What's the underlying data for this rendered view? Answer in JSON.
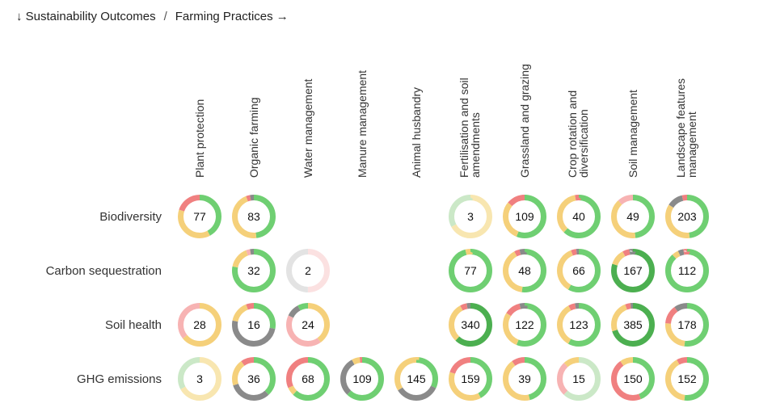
{
  "breadcrumb": {
    "outcomes": "↓ Sustainability Outcomes",
    "separator": "/",
    "practices": "Farming Practices →"
  },
  "colors": {
    "positive": "#6fcf72",
    "positive_strong": "#4caf50",
    "mixed": "#f5d07a",
    "negative": "#f08080",
    "negative_light": "#f7b3b3",
    "neutral": "#8a8a8a",
    "neutral_light": "#d0d0d0",
    "positive_light": "#cbe8c7",
    "mixed_light": "#f8e6b0",
    "negative_pale": "#fbe1e1",
    "gray_pale": "#e3e3e3"
  },
  "chart_data": {
    "type": "heatmap",
    "rows": [
      "Biodiversity",
      "Carbon sequestration",
      "Soil health",
      "GHG emissions"
    ],
    "columns": [
      [
        "Plant protection"
      ],
      [
        "Organic farming"
      ],
      [
        "Water management"
      ],
      [
        "Manure management"
      ],
      [
        "Animal husbandry"
      ],
      [
        "Fertilisation and soil",
        "amendments"
      ],
      [
        "Grassland and grazing"
      ],
      [
        "Crop rotation and",
        "diversification"
      ],
      [
        "Soil management"
      ],
      [
        "Landscape features",
        "management"
      ]
    ],
    "cells": [
      [
        {
          "value": 77,
          "segments": [
            [
              "positive",
              0.42
            ],
            [
              "mixed",
              0.38
            ],
            [
              "negative",
              0.2
            ]
          ]
        },
        {
          "value": 83,
          "segments": [
            [
              "positive",
              0.48
            ],
            [
              "mixed",
              0.46
            ],
            [
              "negative",
              0.03
            ],
            [
              "neutral",
              0.03
            ]
          ]
        },
        null,
        null,
        null,
        {
          "value": 3,
          "segments": [
            [
              "mixed_light",
              0.67
            ],
            [
              "positive_light",
              0.33
            ]
          ]
        },
        {
          "value": 109,
          "segments": [
            [
              "positive",
              0.56
            ],
            [
              "mixed",
              0.3
            ],
            [
              "negative",
              0.14
            ]
          ]
        },
        {
          "value": 40,
          "segments": [
            [
              "positive",
              0.62
            ],
            [
              "mixed",
              0.35
            ],
            [
              "negative",
              0.03
            ]
          ]
        },
        {
          "value": 49,
          "segments": [
            [
              "positive",
              0.48
            ],
            [
              "mixed",
              0.4
            ],
            [
              "negative_light",
              0.12
            ]
          ]
        },
        {
          "value": 203,
          "segments": [
            [
              "positive",
              0.48
            ],
            [
              "mixed",
              0.36
            ],
            [
              "neutral",
              0.12
            ],
            [
              "negative",
              0.04
            ]
          ]
        }
      ],
      [
        null,
        {
          "value": 32,
          "segments": [
            [
              "positive",
              0.78
            ],
            [
              "mixed",
              0.16
            ],
            [
              "negative_light",
              0.03
            ],
            [
              "neutral",
              0.03
            ]
          ]
        },
        {
          "value": 2,
          "segments": [
            [
              "negative_pale",
              0.5
            ],
            [
              "gray_pale",
              0.5
            ]
          ]
        },
        null,
        null,
        {
          "value": 77,
          "segments": [
            [
              "positive",
              0.96
            ],
            [
              "mixed",
              0.04
            ]
          ]
        },
        {
          "value": 48,
          "segments": [
            [
              "positive",
              0.52
            ],
            [
              "mixed",
              0.4
            ],
            [
              "negative",
              0.04
            ],
            [
              "neutral",
              0.04
            ]
          ]
        },
        {
          "value": 66,
          "segments": [
            [
              "positive",
              0.58
            ],
            [
              "mixed",
              0.36
            ],
            [
              "negative",
              0.04
            ],
            [
              "neutral",
              0.02
            ]
          ]
        },
        {
          "value": 167,
          "segments": [
            [
              "positive_strong",
              0.8
            ],
            [
              "mixed",
              0.12
            ],
            [
              "negative",
              0.05
            ],
            [
              "neutral",
              0.03
            ]
          ]
        },
        {
          "value": 112,
          "segments": [
            [
              "positive",
              0.88
            ],
            [
              "mixed",
              0.05
            ],
            [
              "neutral",
              0.04
            ],
            [
              "negative",
              0.03
            ]
          ]
        }
      ],
      [
        {
          "value": 28,
          "segments": [
            [
              "mixed",
              0.64
            ],
            [
              "negative_light",
              0.36
            ]
          ]
        },
        {
          "value": 16,
          "segments": [
            [
              "positive",
              0.28
            ],
            [
              "neutral",
              0.5
            ],
            [
              "mixed",
              0.16
            ],
            [
              "negative",
              0.06
            ]
          ]
        },
        {
          "value": 24,
          "segments": [
            [
              "mixed",
              0.4
            ],
            [
              "negative_light",
              0.42
            ],
            [
              "neutral",
              0.1
            ],
            [
              "positive",
              0.08
            ]
          ]
        },
        null,
        null,
        {
          "value": 340,
          "segments": [
            [
              "positive_strong",
              0.62
            ],
            [
              "mixed",
              0.3
            ],
            [
              "negative",
              0.05
            ],
            [
              "neutral",
              0.03
            ]
          ]
        },
        {
          "value": 122,
          "segments": [
            [
              "positive",
              0.56
            ],
            [
              "mixed",
              0.28
            ],
            [
              "negative",
              0.12
            ],
            [
              "neutral",
              0.04
            ]
          ]
        },
        {
          "value": 123,
          "segments": [
            [
              "positive",
              0.58
            ],
            [
              "mixed",
              0.34
            ],
            [
              "negative",
              0.05
            ],
            [
              "neutral",
              0.03
            ]
          ]
        },
        {
          "value": 385,
          "segments": [
            [
              "positive_strong",
              0.7
            ],
            [
              "mixed",
              0.24
            ],
            [
              "negative",
              0.04
            ],
            [
              "neutral",
              0.02
            ]
          ]
        },
        {
          "value": 178,
          "segments": [
            [
              "positive",
              0.52
            ],
            [
              "mixed",
              0.24
            ],
            [
              "negative",
              0.14
            ],
            [
              "neutral",
              0.1
            ]
          ]
        }
      ],
      [
        {
          "value": 3,
          "segments": [
            [
              "mixed_light",
              0.67
            ],
            [
              "positive_light",
              0.33
            ]
          ]
        },
        {
          "value": 36,
          "segments": [
            [
              "positive",
              0.38
            ],
            [
              "neutral",
              0.32
            ],
            [
              "mixed",
              0.2
            ],
            [
              "negative",
              0.1
            ]
          ]
        },
        {
          "value": 68,
          "segments": [
            [
              "positive",
              0.62
            ],
            [
              "mixed",
              0.06
            ],
            [
              "negative",
              0.32
            ]
          ]
        },
        {
          "value": 109,
          "segments": [
            [
              "positive",
              0.62
            ],
            [
              "neutral",
              0.3
            ],
            [
              "mixed",
              0.06
            ],
            [
              "negative",
              0.02
            ]
          ]
        },
        {
          "value": 145,
          "segments": [
            [
              "positive",
              0.32
            ],
            [
              "neutral",
              0.34
            ],
            [
              "mixed",
              0.34
            ]
          ]
        },
        {
          "value": 159,
          "segments": [
            [
              "positive",
              0.42
            ],
            [
              "mixed",
              0.38
            ],
            [
              "negative",
              0.2
            ]
          ]
        },
        {
          "value": 39,
          "segments": [
            [
              "positive",
              0.46
            ],
            [
              "mixed",
              0.44
            ],
            [
              "negative",
              0.1
            ]
          ]
        },
        {
          "value": 15,
          "segments": [
            [
              "positive_light",
              0.62
            ],
            [
              "negative_light",
              0.26
            ],
            [
              "mixed",
              0.12
            ]
          ]
        },
        {
          "value": 150,
          "segments": [
            [
              "positive",
              0.44
            ],
            [
              "negative",
              0.46
            ],
            [
              "mixed",
              0.1
            ]
          ]
        },
        {
          "value": 152,
          "segments": [
            [
              "positive",
              0.52
            ],
            [
              "mixed",
              0.4
            ],
            [
              "negative",
              0.08
            ]
          ]
        }
      ]
    ]
  }
}
